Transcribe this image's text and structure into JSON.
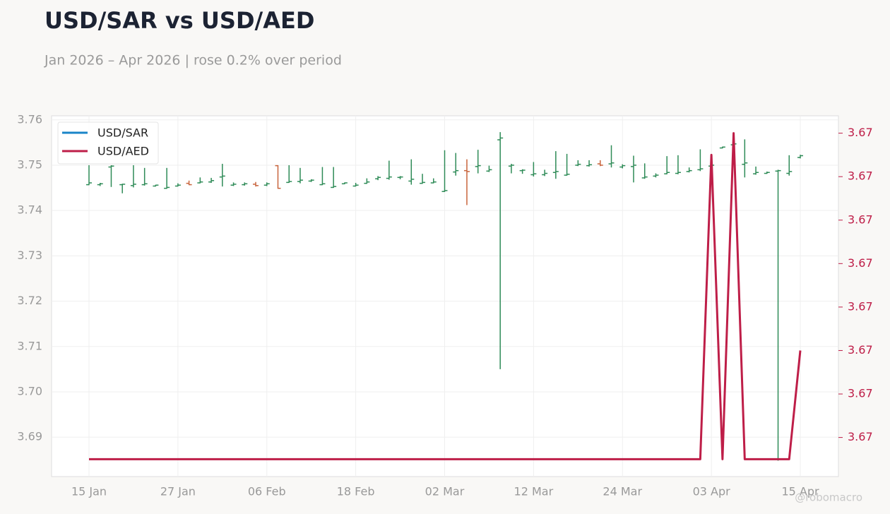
{
  "chart_data": {
    "type": "ohlc",
    "title": "USD/SAR vs USD/AED",
    "subtitle": "Jan 2026 – Apr 2026 | rose 0.2% over period",
    "watermark": "@robomacro",
    "grid": true,
    "legend": "upper left",
    "up_color": "#2e8b57",
    "down_color": "#c8643c",
    "categories": [
      "15 Jan",
      null,
      null,
      null,
      null,
      null,
      null,
      null,
      "27 Jan",
      null,
      null,
      null,
      null,
      null,
      null,
      null,
      "06 Feb",
      null,
      null,
      null,
      null,
      null,
      null,
      null,
      "18 Feb",
      null,
      null,
      null,
      null,
      null,
      null,
      null,
      "02 Mar",
      null,
      null,
      null,
      null,
      null,
      null,
      null,
      "12 Mar",
      null,
      null,
      null,
      null,
      null,
      null,
      null,
      "24 Mar",
      null,
      null,
      null,
      null,
      null,
      null,
      null,
      "03 Apr",
      null,
      null,
      null,
      null,
      null,
      null,
      null,
      "15 Apr"
    ],
    "ylim": [
      3.6813,
      3.7609
    ],
    "yticks": [
      3.69,
      {
        "value": 3.7,
        "label": "3.70"
      },
      3.71,
      3.72,
      3.73,
      3.74,
      3.75,
      3.76
    ],
    "y2lim": [
      3.672496,
      3.672579
    ],
    "y2ticks": [
      {
        "value": 3.672505,
        "label": "3.67"
      },
      {
        "value": 3.672515,
        "label": "3.67"
      },
      {
        "value": 3.672525,
        "label": "3.67"
      },
      {
        "value": 3.672535,
        "label": "3.67"
      },
      {
        "value": 3.672545,
        "label": "3.67"
      },
      {
        "value": 3.672555,
        "label": "3.67"
      },
      {
        "value": 3.672565,
        "label": "3.67"
      },
      {
        "value": 3.672575,
        "label": "3.67"
      }
    ],
    "series": [
      {
        "name": "USD/SAR",
        "type": "ohlc",
        "color": "#1a85c8",
        "open": [
          3.7457,
          3.7457,
          3.7496,
          3.7457,
          3.7455,
          3.7457,
          3.7454,
          3.7449,
          3.7454,
          3.746,
          3.7461,
          3.7463,
          3.7474,
          3.7456,
          3.7457,
          3.7458,
          3.7456,
          3.7499,
          3.7462,
          3.7464,
          3.7465,
          3.7457,
          3.7451,
          3.7459,
          3.7454,
          3.746,
          3.747,
          3.7471,
          3.7473,
          3.7465,
          3.746,
          3.7461,
          3.7442,
          3.7485,
          3.7488,
          3.7497,
          3.7487,
          3.7556,
          3.7498,
          3.7488,
          3.7479,
          3.7479,
          3.7484,
          3.7478,
          3.75,
          3.7499,
          3.7503,
          3.7503,
          3.7496,
          3.7497,
          3.7472,
          3.7476,
          3.7481,
          3.7482,
          3.7486,
          3.749,
          3.7498,
          3.7538,
          3.7545,
          3.7502,
          3.7481,
          3.7482,
          3.7487,
          3.7482,
          3.7517
        ],
        "high": [
          3.75,
          3.7461,
          3.75,
          3.7459,
          3.75,
          3.7494,
          3.7457,
          3.7494,
          3.746,
          3.7466,
          3.7473,
          3.7472,
          3.7503,
          3.7462,
          3.7462,
          3.7463,
          3.7462,
          3.75,
          3.75,
          3.7494,
          3.7469,
          3.7496,
          3.7496,
          3.7462,
          3.7461,
          3.7471,
          3.7476,
          3.751,
          3.7476,
          3.7513,
          3.7481,
          3.7471,
          3.7533,
          3.7527,
          3.7513,
          3.7534,
          3.7499,
          3.7573,
          3.7503,
          3.7491,
          3.7507,
          3.749,
          3.7531,
          3.7525,
          3.7511,
          3.7511,
          3.7511,
          3.7544,
          3.7502,
          3.7521,
          3.7504,
          3.7482,
          3.752,
          3.7522,
          3.7495,
          3.7535,
          3.7505,
          3.7541,
          3.7549,
          3.7557,
          3.7497,
          3.7486,
          3.749,
          3.7522,
          3.7523
        ],
        "low": [
          3.7456,
          3.7454,
          3.7452,
          3.7438,
          3.7451,
          3.7455,
          3.7453,
          3.7448,
          3.7453,
          3.7456,
          3.746,
          3.7461,
          3.7453,
          3.7454,
          3.7455,
          3.7453,
          3.7454,
          3.7448,
          3.7461,
          3.746,
          3.7463,
          3.7456,
          3.745,
          3.7458,
          3.7453,
          3.7459,
          3.7467,
          3.7468,
          3.7469,
          3.7457,
          3.7459,
          3.746,
          3.7441,
          3.7477,
          3.7412,
          3.7482,
          3.7485,
          3.705,
          3.7482,
          3.7481,
          3.7475,
          3.7476,
          3.747,
          3.7477,
          3.7498,
          3.7497,
          3.7498,
          3.7495,
          3.7493,
          3.7462,
          3.747,
          3.7473,
          3.748,
          3.748,
          3.7484,
          3.7487,
          3.7493,
          3.7537,
          3.7543,
          3.7473,
          3.7479,
          3.7481,
          3.6848,
          3.7477,
          3.7515
        ],
        "close": [
          3.7461,
          3.7459,
          3.7498,
          3.7458,
          3.7458,
          3.7459,
          3.7456,
          3.7451,
          3.7456,
          3.7457,
          3.7463,
          3.7466,
          3.7476,
          3.7458,
          3.7459,
          3.7455,
          3.7459,
          3.7449,
          3.7464,
          3.7467,
          3.7467,
          3.7459,
          3.7453,
          3.7461,
          3.7456,
          3.7463,
          3.7473,
          3.7474,
          3.7474,
          3.7469,
          3.7462,
          3.7463,
          3.7444,
          3.7488,
          3.7486,
          3.7499,
          3.749,
          3.756,
          3.75,
          3.7489,
          3.7481,
          3.7482,
          3.7486,
          3.748,
          3.7502,
          3.7501,
          3.75,
          3.7505,
          3.7499,
          3.75,
          3.7474,
          3.7478,
          3.7484,
          3.7484,
          3.7488,
          3.7492,
          3.75,
          3.754,
          3.7547,
          3.7505,
          3.7484,
          3.7484,
          3.7488,
          3.7486,
          3.7521
        ]
      },
      {
        "name": "USD/AED",
        "type": "line",
        "axis": "y2",
        "color": "#be1e48",
        "values": [
          3.6725,
          3.6725,
          3.6725,
          3.6725,
          3.6725,
          3.6725,
          3.6725,
          3.6725,
          3.6725,
          3.6725,
          3.6725,
          3.6725,
          3.6725,
          3.6725,
          3.6725,
          3.6725,
          3.6725,
          3.6725,
          3.6725,
          3.6725,
          3.6725,
          3.6725,
          3.6725,
          3.6725,
          3.6725,
          3.6725,
          3.6725,
          3.6725,
          3.6725,
          3.6725,
          3.6725,
          3.6725,
          3.6725,
          3.6725,
          3.6725,
          3.6725,
          3.6725,
          3.6725,
          3.6725,
          3.6725,
          3.6725,
          3.6725,
          3.6725,
          3.6725,
          3.6725,
          3.6725,
          3.6725,
          3.6725,
          3.6725,
          3.6725,
          3.6725,
          3.6725,
          3.6725,
          3.6725,
          3.6725,
          3.6725,
          3.67257,
          3.6725,
          3.672575,
          3.6725,
          3.6725,
          3.6725,
          3.6725,
          3.6725,
          3.672525
        ]
      }
    ]
  }
}
